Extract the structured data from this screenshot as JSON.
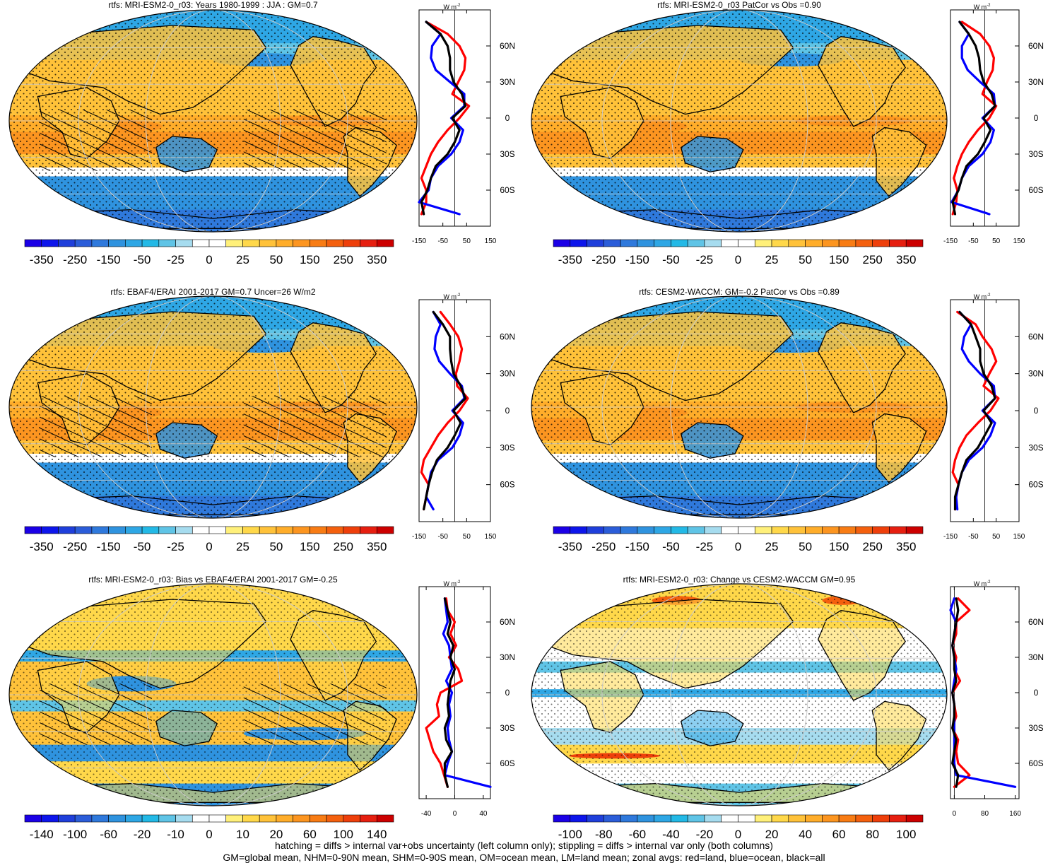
{
  "footer": {
    "line1": "hatching = diffs > internal var+obs uncertainty (left column only); stippling = diffs > internal var only (both columns)",
    "line2": "GM=global mean, NHM=0-90N mean, SHM=0-90S mean, OM=ocean mean, LM=land mean; zonal avgs: red=land, blue=ocean, black=all"
  },
  "colors": {
    "land": "#ff0000",
    "ocean": "#0000ff",
    "all": "#000000",
    "coast": "#000000",
    "grid": "#cccccc",
    "scale": [
      "#1b00e6",
      "#0d15eb",
      "#1f3fdb",
      "#2b5dd9",
      "#2f79dc",
      "#2f93df",
      "#2ea7e5",
      "#23b9e6",
      "#5fc4e6",
      "#a6dcef",
      "#ffffff",
      "#ffffff",
      "#fff07a",
      "#ffd84a",
      "#ffc23a",
      "#ffad2a",
      "#fc9520",
      "#f87c14",
      "#f4600e",
      "#ee3f0b",
      "#e61f10",
      "#cc0000"
    ]
  },
  "chart_data": [
    {
      "type": "heatmap",
      "title": "rtfs: MRI-ESM2-0_r03: Years 1980-1999 : JJA : GM=0.7",
      "colorbar_labels": [
        "-350",
        "-250",
        "-150",
        "-50",
        "-25",
        "0",
        "25",
        "50",
        "150",
        "250",
        "350"
      ],
      "profile": {
        "units": "W m",
        "units_sup": "-2",
        "xlim": [
          -150,
          150
        ],
        "xticks": [
          "-150",
          "-50",
          "50",
          "150"
        ],
        "yticks": [
          "60N",
          "30N",
          "0",
          "30S",
          "60S"
        ],
        "lat": [
          80,
          70,
          60,
          50,
          40,
          30,
          20,
          10,
          0,
          -10,
          -20,
          -30,
          -40,
          -50,
          -60,
          -70,
          -80
        ],
        "land": [
          -120,
          -30,
          20,
          45,
          40,
          15,
          -10,
          60,
          20,
          -30,
          -70,
          -100,
          -120,
          -140,
          -120,
          -120,
          -140
        ],
        "ocean": [
          -120,
          -60,
          -95,
          -100,
          -80,
          -20,
          40,
          40,
          -15,
          35,
          20,
          -15,
          -70,
          -100,
          -110,
          -150,
          20
        ],
        "all": [
          -120,
          -60,
          -30,
          -20,
          -20,
          -5,
          30,
          45,
          -10,
          20,
          0,
          -30,
          -80,
          -100,
          -115,
          -140,
          -130
        ]
      }
    },
    {
      "type": "heatmap",
      "title": "rtfs: MRI-ESM2-0_r03 PatCor vs Obs =0.90",
      "colorbar_labels": [
        "-350",
        "-250",
        "-150",
        "-50",
        "-25",
        "0",
        "25",
        "50",
        "150",
        "250",
        "350"
      ],
      "profile": {
        "units": "W m",
        "units_sup": "-2",
        "xlim": [
          -150,
          150
        ],
        "xticks": [
          "-150",
          "-50",
          "50",
          "150"
        ],
        "yticks": [
          "60N",
          "30N",
          "0",
          "30S",
          "60S"
        ],
        "lat": [
          80,
          70,
          60,
          50,
          40,
          30,
          20,
          10,
          0,
          -10,
          -20,
          -30,
          -40,
          -50,
          -60,
          -70,
          -80
        ],
        "land": [
          -100,
          -20,
          20,
          40,
          35,
          10,
          -10,
          50,
          20,
          -30,
          -70,
          -100,
          -120,
          -135,
          -120,
          -125,
          -140
        ],
        "ocean": [
          -110,
          -70,
          -100,
          -100,
          -75,
          -20,
          40,
          45,
          -10,
          40,
          25,
          -10,
          -70,
          -100,
          -115,
          -145,
          20
        ],
        "all": [
          -110,
          -70,
          -40,
          -25,
          -20,
          -5,
          30,
          45,
          -5,
          25,
          0,
          -30,
          -80,
          -100,
          -115,
          -140,
          -130
        ]
      }
    },
    {
      "type": "heatmap",
      "title": "rtfs: EBAF4/ERAI 2001-2017 GM=0.7 Uncer=26 W/m2",
      "colorbar_labels": [
        "-350",
        "-250",
        "-150",
        "-50",
        "-25",
        "0",
        "25",
        "50",
        "150",
        "250",
        "350"
      ],
      "profile": {
        "units": "W m",
        "units_sup": "-2",
        "xlim": [
          -150,
          150
        ],
        "xticks": [
          "-150",
          "-50",
          "50",
          "150"
        ],
        "yticks": [
          "60N",
          "30N",
          "0",
          "30S",
          "60S"
        ],
        "lat": [
          80,
          70,
          60,
          50,
          40,
          30,
          20,
          10,
          0,
          -10,
          -20,
          -30,
          -40,
          -50,
          -60,
          -70,
          -80
        ],
        "land": [
          -60,
          -20,
          15,
          30,
          20,
          5,
          10,
          55,
          20,
          -30,
          -70,
          -100,
          -130,
          -140,
          -110,
          -120,
          -130
        ],
        "ocean": [
          -90,
          -60,
          -80,
          -85,
          -65,
          -20,
          30,
          40,
          -10,
          35,
          20,
          -10,
          -70,
          -100,
          -110,
          -120,
          -90
        ],
        "all": [
          -90,
          -50,
          -20,
          -20,
          -15,
          -5,
          25,
          45,
          -5,
          25,
          0,
          -30,
          -75,
          -95,
          -110,
          -120,
          -130
        ]
      }
    },
    {
      "type": "heatmap",
      "title": "rtfs: CESM2-WACCM: GM=-0.2 PatCor vs Obs =0.89",
      "colorbar_labels": [
        "-350",
        "-250",
        "-150",
        "-50",
        "-25",
        "0",
        "25",
        "50",
        "150",
        "250",
        "350"
      ],
      "profile": {
        "units": "W m",
        "units_sup": "-2",
        "xlim": [
          -150,
          150
        ],
        "xticks": [
          "-150",
          "-50",
          "50",
          "150"
        ],
        "yticks": [
          "60N",
          "30N",
          "0",
          "30S",
          "60S"
        ],
        "lat": [
          80,
          70,
          60,
          50,
          40,
          30,
          20,
          10,
          0,
          -10,
          -20,
          -30,
          -40,
          -50,
          -60,
          -70,
          -80
        ],
        "land": [
          -120,
          -40,
          -10,
          30,
          50,
          20,
          -5,
          60,
          25,
          -30,
          -80,
          -110,
          -130,
          -140,
          -115,
          -125,
          -130
        ],
        "ocean": [
          -110,
          -60,
          -90,
          -100,
          -70,
          -20,
          40,
          45,
          -10,
          45,
          25,
          -10,
          -70,
          -100,
          -115,
          -125,
          -120
        ],
        "all": [
          -110,
          -60,
          -40,
          -20,
          -20,
          -5,
          30,
          45,
          -5,
          30,
          0,
          -30,
          -80,
          -100,
          -115,
          -130,
          -130
        ]
      }
    },
    {
      "type": "heatmap",
      "title": "rtfs: MRI-ESM2-0_r03: Bias vs EBAF4/ERAI 2001-2017 GM=-0.25",
      "colorbar_labels": [
        "-140",
        "-100",
        "-60",
        "-20",
        "-10",
        "0",
        "10",
        "20",
        "60",
        "100",
        "140"
      ],
      "profile": {
        "units": "W m",
        "units_sup": "-2",
        "xlim": [
          -50,
          50
        ],
        "xticks": [
          "-40",
          "0",
          "40"
        ],
        "yticks": [
          "60N",
          "30N",
          "0",
          "30S",
          "60S"
        ],
        "lat": [
          80,
          70,
          60,
          50,
          40,
          30,
          20,
          10,
          0,
          -10,
          -20,
          -30,
          -40,
          -50,
          -60,
          -70,
          -80
        ],
        "land": [
          -12,
          -10,
          0,
          -6,
          2,
          -8,
          5,
          10,
          -20,
          -25,
          -22,
          -40,
          -35,
          -30,
          -20,
          -15,
          -10
        ],
        "ocean": [
          -14,
          -12,
          -10,
          -16,
          -8,
          -6,
          -4,
          -12,
          -4,
          -8,
          -6,
          -10,
          -8,
          -4,
          -10,
          -14,
          50
        ],
        "all": [
          -14,
          -10,
          -6,
          -10,
          -2,
          -6,
          0,
          -6,
          -8,
          -10,
          -8,
          -14,
          -12,
          -4,
          -14,
          -14,
          -10
        ]
      }
    },
    {
      "type": "heatmap",
      "title": "rtfs: MRI-ESM2-0_r03: Change vs CESM2-WACCM GM=0.95",
      "colorbar_labels": [
        "-100",
        "-80",
        "-60",
        "-40",
        "-20",
        "0",
        "20",
        "40",
        "60",
        "80",
        "100"
      ],
      "profile": {
        "units": "W m",
        "units_sup": "-2",
        "xlim": [
          -10,
          170
        ],
        "xticks": [
          "0",
          "80",
          "160"
        ],
        "yticks": [
          "60N",
          "30N",
          "0",
          "30S",
          "60S"
        ],
        "lat": [
          80,
          70,
          60,
          50,
          40,
          30,
          20,
          10,
          0,
          -10,
          -20,
          -30,
          -40,
          -50,
          -60,
          -70,
          -80
        ],
        "land": [
          10,
          40,
          5,
          5,
          -5,
          5,
          0,
          15,
          -5,
          0,
          5,
          -5,
          10,
          5,
          10,
          40,
          0
        ],
        "ocean": [
          0,
          -10,
          5,
          0,
          -5,
          0,
          5,
          0,
          -5,
          0,
          0,
          0,
          0,
          0,
          0,
          5,
          160
        ],
        "all": [
          5,
          10,
          5,
          0,
          -5,
          0,
          0,
          5,
          -5,
          0,
          0,
          -5,
          5,
          0,
          -5,
          10,
          5
        ]
      }
    }
  ]
}
